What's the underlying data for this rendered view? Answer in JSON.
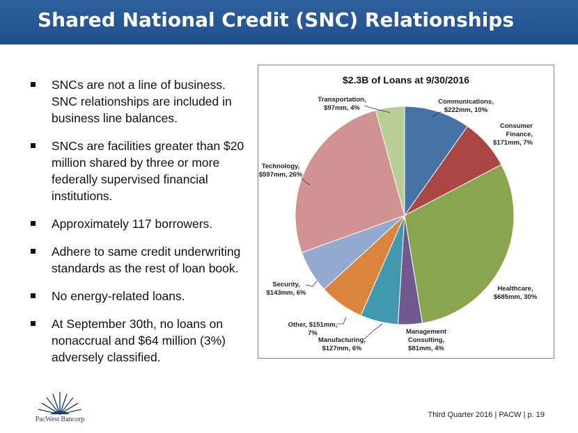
{
  "header": {
    "title": "Shared National Credit (SNC) Relationships"
  },
  "bullets": [
    "SNCs are not a line of business.  SNC relationships are included in business line balances.",
    "SNCs are facilities greater than $20 million shared by three or more federally supervised financial institutions.",
    "Approximately 117 borrowers.",
    "Adhere to same credit underwriting standards as the rest of loan book.",
    "No energy-related loans.",
    "At September 30th, no loans on nonaccrual and $64 million (3%) adversely classified."
  ],
  "chart_data": {
    "type": "pie",
    "title": "$2.3B of Loans at 9/30/2016",
    "slices": [
      {
        "label_lines": [
          "Communications,",
          "$222mm, 10%"
        ],
        "value": 222,
        "color": "#4572a7"
      },
      {
        "label_lines": [
          "Consumer",
          "Finance,",
          "$171mm, 7%"
        ],
        "value": 171,
        "color": "#aa4643"
      },
      {
        "label_lines": [
          "Healthcare,",
          "$685mm, 30%"
        ],
        "value": 685,
        "color": "#89a54e"
      },
      {
        "label_lines": [
          "Management",
          "Consulting,",
          "$81mm, 4%"
        ],
        "value": 81,
        "color": "#71588f"
      },
      {
        "label_lines": [
          "Manufacturing,",
          "$127mm, 6%"
        ],
        "value": 127,
        "color": "#4198af"
      },
      {
        "label_lines": [
          "Other, $151mm,",
          "7%"
        ],
        "value": 151,
        "color": "#db843d"
      },
      {
        "label_lines": [
          "Security,",
          "$143mm, 6%"
        ],
        "value": 143,
        "color": "#93a9cf"
      },
      {
        "label_lines": [
          "Technology,",
          "$597mm, 26%"
        ],
        "value": 597,
        "color": "#d19392"
      },
      {
        "label_lines": [
          "Transportation,",
          "$97mm, 4%"
        ],
        "value": 97,
        "color": "#b9cd96"
      }
    ]
  },
  "footer": {
    "text": "Third Quarter 2016 | PACW | p. 19"
  },
  "logo": {
    "text": "PacWest Bancorp"
  }
}
